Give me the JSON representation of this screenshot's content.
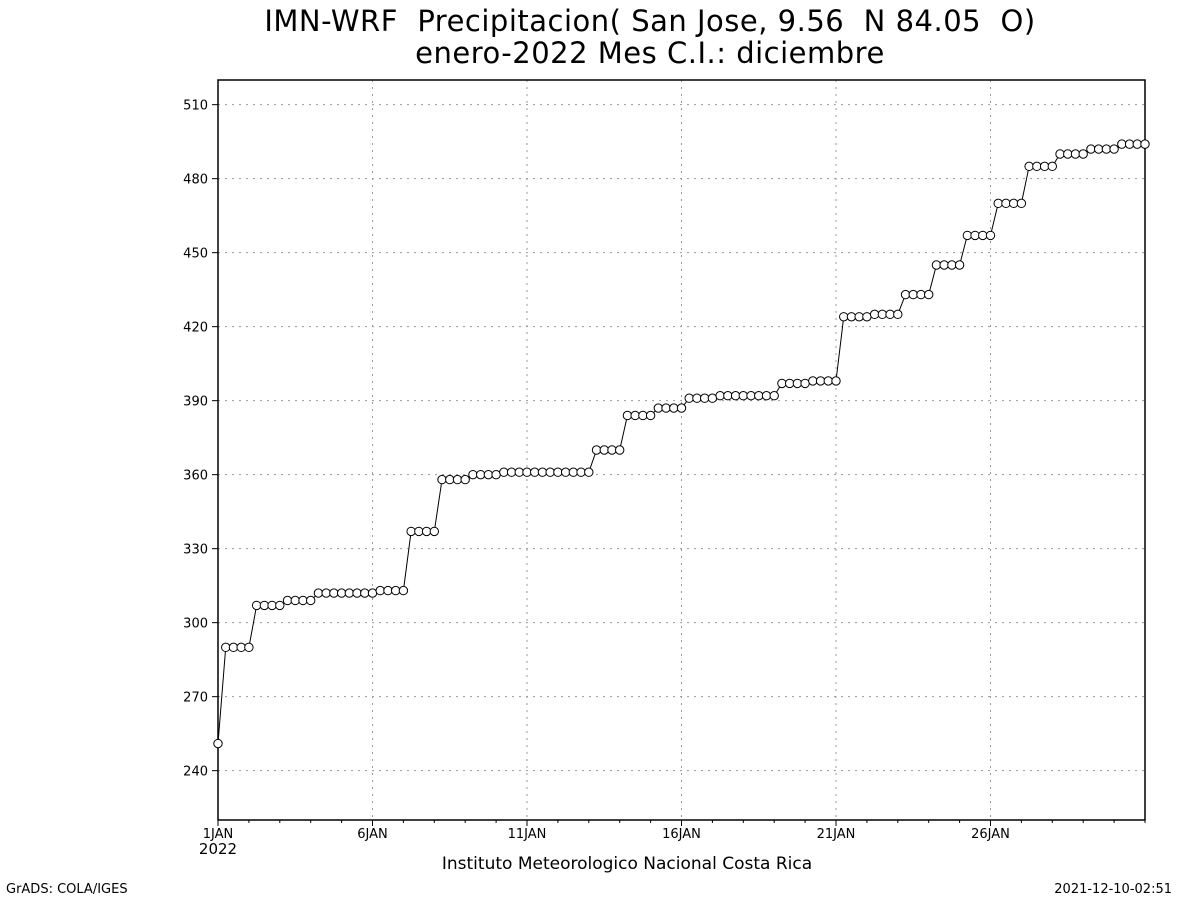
{
  "chart_data": {
    "type": "line",
    "title": "IMN-WRF  Precipitacion( San Jose, 9.56  N 84.05  O)",
    "subtitle": "enero-2022 Mes C.I.: diciembre",
    "xlabel": "Instituto Meteorologico Nacional Costa Rica",
    "ylabel": "",
    "ylim": [
      220,
      520
    ],
    "yticks": [
      240,
      270,
      300,
      330,
      360,
      390,
      420,
      450,
      480,
      510
    ],
    "x_day_range": [
      1,
      31
    ],
    "xticks": [
      {
        "day": 1,
        "label": "1JAN",
        "sublabel": "2022"
      },
      {
        "day": 6,
        "label": "6JAN",
        "sublabel": ""
      },
      {
        "day": 11,
        "label": "11JAN",
        "sublabel": ""
      },
      {
        "day": 16,
        "label": "16JAN",
        "sublabel": ""
      },
      {
        "day": 21,
        "label": "21JAN",
        "sublabel": ""
      },
      {
        "day": 26,
        "label": "26JAN",
        "sublabel": ""
      }
    ],
    "grid": true,
    "marker": "open-circle",
    "series": [
      {
        "x_start_day": 1,
        "step_hours": 6,
        "values": [
          251,
          290,
          290,
          290,
          290,
          307,
          307,
          307,
          307,
          309,
          309,
          309,
          309,
          312,
          312,
          312,
          312,
          312,
          312,
          312,
          312,
          313,
          313,
          313,
          313,
          337,
          337,
          337,
          337,
          358,
          358,
          358,
          358,
          360,
          360,
          360,
          360,
          361,
          361,
          361,
          361,
          361,
          361,
          361,
          361,
          361,
          361,
          361,
          361,
          370,
          370,
          370,
          370,
          384,
          384,
          384,
          384,
          387,
          387,
          387,
          387,
          391,
          391,
          391,
          391,
          392,
          392,
          392,
          392,
          392,
          392,
          392,
          392,
          397,
          397,
          397,
          397,
          398,
          398,
          398,
          398,
          424,
          424,
          424,
          424,
          425,
          425,
          425,
          425,
          433,
          433,
          433,
          433,
          445,
          445,
          445,
          445,
          457,
          457,
          457,
          457,
          470,
          470,
          470,
          470,
          485,
          485,
          485,
          485,
          490,
          490,
          490,
          490,
          492,
          492,
          492,
          492,
          494,
          494,
          494,
          494
        ]
      }
    ]
  },
  "footer": {
    "left": "GrADS: COLA/IGES",
    "right": "2021-12-10-02:51"
  }
}
